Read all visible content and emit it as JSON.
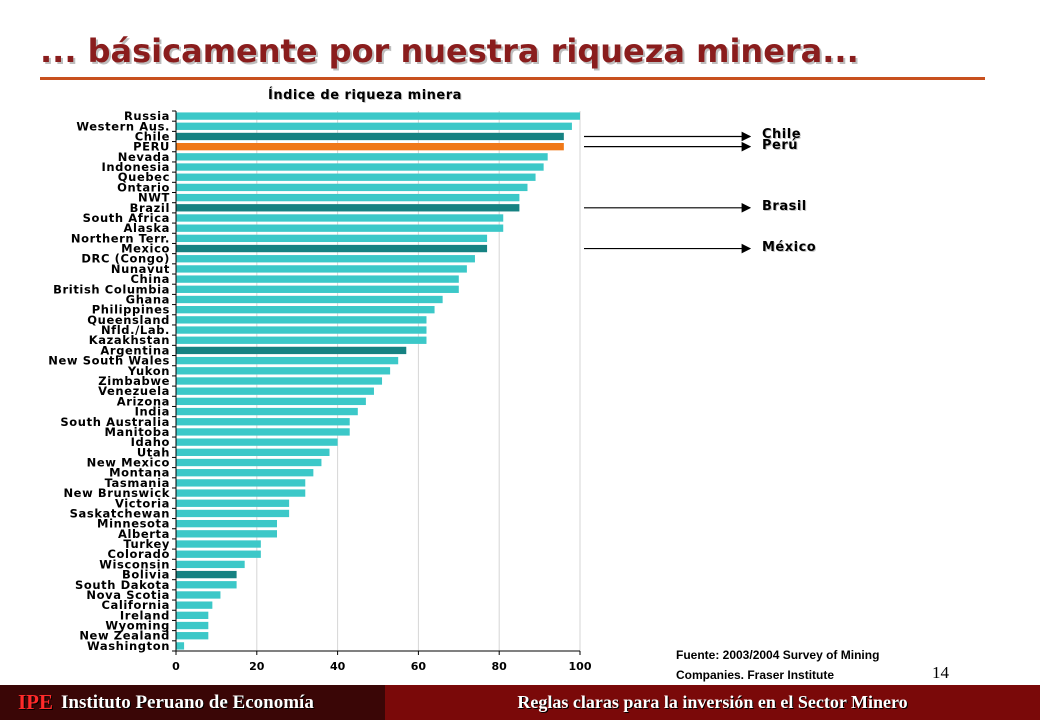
{
  "slide": {
    "title": "... básicamente por nuestra riqueza minera...",
    "page_number": "14"
  },
  "chart_data": {
    "type": "bar",
    "orientation": "horizontal",
    "title": "Índice de riqueza minera",
    "xlim": [
      0,
      100
    ],
    "x_ticks": [
      "0",
      "20",
      "40",
      "60",
      "80",
      "100"
    ],
    "grid": true,
    "colors": {
      "default": "#3cc8c8",
      "highlight": "#168282",
      "peru": "#f07818"
    },
    "categories": [
      "Russia",
      "Western Aus.",
      "Chile",
      "PERU",
      "Nevada",
      "Indonesia",
      "Quebec",
      "Ontario",
      "NWT",
      "Brazil",
      "South Africa",
      "Alaska",
      "Northern Terr.",
      "Mexico",
      "DRC (Congo)",
      "Nunavut",
      "China",
      "British Columbia",
      "Ghana",
      "Philippines",
      "Queensland",
      "Nfld./Lab.",
      "Kazakhstan",
      "Argentina",
      "New South Wales",
      "Yukon",
      "Zimbabwe",
      "Venezuela",
      "Arizona",
      "India",
      "South Australia",
      "Manitoba",
      "Idaho",
      "Utah",
      "New Mexico",
      "Montana",
      "Tasmania",
      "New Brunswick",
      "Victoria",
      "Saskatchewan",
      "Minnesota",
      "Alberta",
      "Turkey",
      "Colorado",
      "Wisconsin",
      "Bolivia",
      "South Dakota",
      "Nova Scotia",
      "California",
      "Ireland",
      "Wyoming",
      "New Zealand",
      "Washington"
    ],
    "values": [
      100,
      98,
      96,
      96,
      92,
      91,
      89,
      87,
      85,
      85,
      81,
      81,
      77,
      77,
      74,
      72,
      70,
      70,
      66,
      64,
      62,
      62,
      62,
      57,
      55,
      53,
      51,
      49,
      47,
      45,
      43,
      43,
      40,
      38,
      36,
      34,
      32,
      32,
      28,
      28,
      25,
      25,
      21,
      21,
      17,
      15,
      15,
      11,
      9,
      8,
      8,
      8,
      2
    ],
    "highlight": {
      "Chile": "highlight",
      "PERU": "peru",
      "Brazil": "highlight",
      "Mexico": "highlight",
      "Argentina": "highlight",
      "Bolivia": "highlight"
    }
  },
  "callouts": [
    {
      "label": "Chile",
      "target": "Chile"
    },
    {
      "label": "Perú",
      "target": "PERU"
    },
    {
      "label": "Brasil",
      "target": "Brazil"
    },
    {
      "label": "México",
      "target": "Mexico"
    }
  ],
  "source": {
    "line1": "Fuente: 2003/2004 Survey of Mining",
    "line2": "Companies. Fraser Institute"
  },
  "footer": {
    "brand": "IPE",
    "org": "Instituto Peruano de Economía",
    "tagline": "Reglas claras para la inversión en el Sector Minero",
    "left_bg": "#3a0606",
    "right_bg": "#7a0909"
  }
}
